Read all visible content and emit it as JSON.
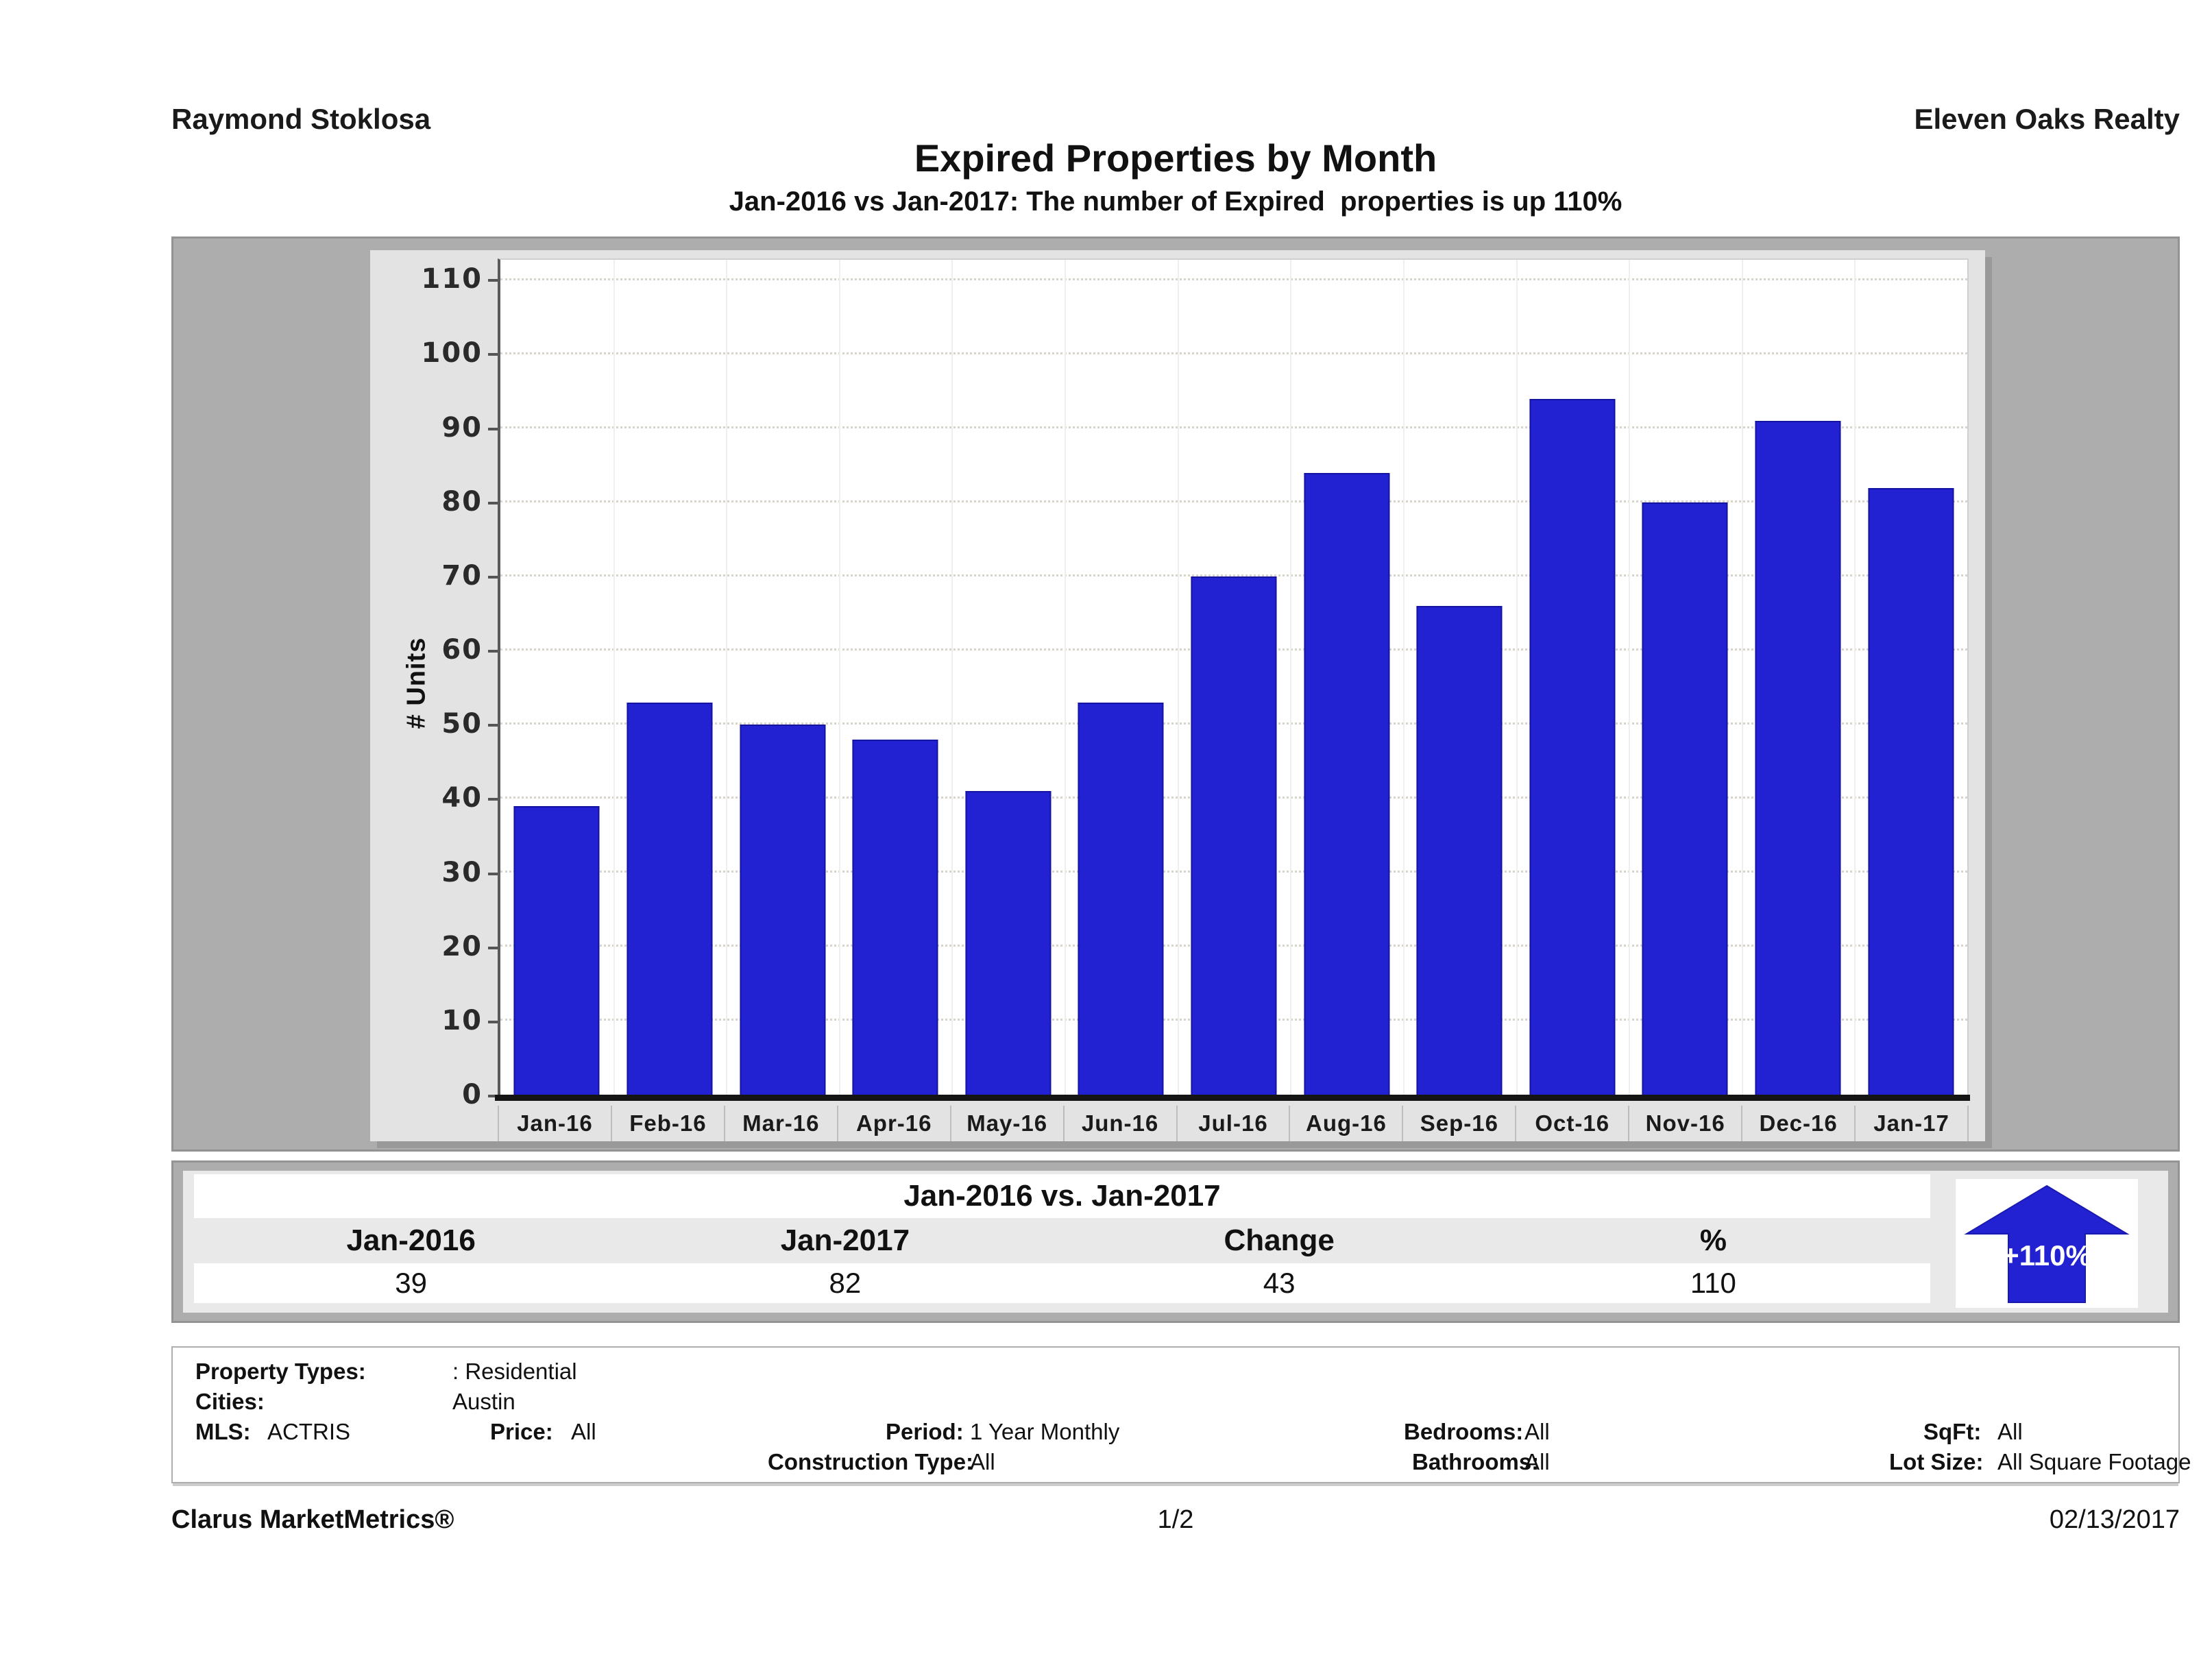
{
  "header": {
    "left": "Raymond Stoklosa",
    "right": "Eleven Oaks Realty"
  },
  "title": "Expired Properties by Month",
  "subtitle": "Jan-2016 vs Jan-2017: The number of Expired  properties is up 110%",
  "chart_data": {
    "type": "bar",
    "categories": [
      "Jan-16",
      "Feb-16",
      "Mar-16",
      "Apr-16",
      "May-16",
      "Jun-16",
      "Jul-16",
      "Aug-16",
      "Sep-16",
      "Oct-16",
      "Nov-16",
      "Dec-16",
      "Jan-17"
    ],
    "values": [
      39,
      53,
      50,
      48,
      41,
      53,
      70,
      84,
      66,
      94,
      80,
      91,
      82
    ],
    "title": "Expired Properties by Month",
    "xlabel": "",
    "ylabel": "# Units",
    "ylim": [
      0,
      110
    ],
    "ytick_step": 10,
    "grid": true,
    "legend": "none",
    "bar_color": "#2222d2"
  },
  "comparison": {
    "title": "Jan-2016 vs. Jan-2017",
    "columns": [
      "Jan-2016",
      "Jan-2017",
      "Change",
      "%"
    ],
    "values": [
      "39",
      "82",
      "43",
      "110"
    ],
    "badge_text": "+110%",
    "badge_color": "#2222d2"
  },
  "criteria": {
    "property_types_label": "Property Types:",
    "property_types_value": ": Residential",
    "cities_label": "Cities:",
    "cities_value": "Austin",
    "mls_label": "MLS:",
    "mls_value": "ACTRIS",
    "price_label": "Price:",
    "price_value": "All",
    "period_label": "Period:",
    "period_value": "1 Year Monthly",
    "construction_label": "Construction Type:",
    "construction_value": "All",
    "bedrooms_label": "Bedrooms:",
    "bedrooms_value": "All",
    "bathrooms_label": "Bathrooms:",
    "bathrooms_value": "All",
    "sqft_label": "SqFt:",
    "sqft_value": "All",
    "lot_size_label": "Lot Size:",
    "lot_size_value": "All Square Footage"
  },
  "footer": {
    "left": "Clarus MarketMetrics®",
    "center": "1/2",
    "right": "02/13/2017"
  }
}
